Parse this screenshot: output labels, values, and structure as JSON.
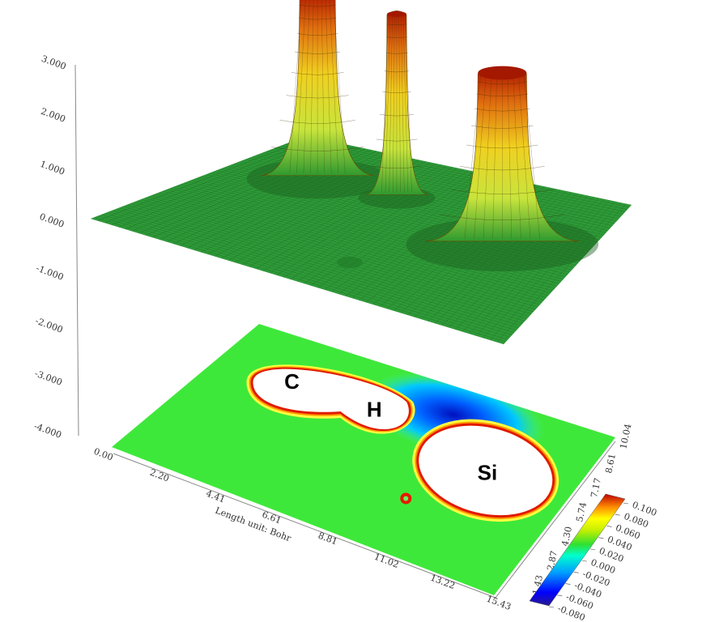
{
  "chart_data": {
    "type": "surface3d_with_contour",
    "z_axis": {
      "ticks": [
        "3.000",
        "2.000",
        "1.000",
        "0.000",
        "-1.000",
        "-2.000",
        "-3.000",
        "-4.000"
      ]
    },
    "x_axis": {
      "label": "Length unit: Bohr",
      "ticks": [
        "0.00",
        "2.20",
        "4.41",
        "6.61",
        "8.81",
        "11.02",
        "13.22",
        "15.43"
      ]
    },
    "y_axis": {
      "ticks": [
        "1.43",
        "2.87",
        "4.30",
        "5.74",
        "7.17",
        "8.61",
        "10.04"
      ]
    },
    "colorbar": {
      "ticks": [
        "0.100",
        "0.080",
        "0.060",
        "0.040",
        "0.020",
        "0.000",
        "-0.020",
        "-0.040",
        "-0.060",
        "-0.080"
      ],
      "range": [
        -0.08,
        0.1
      ],
      "colors": [
        "#2a1a8c",
        "#0000ff",
        "#00a0ff",
        "#00ffcc",
        "#30e030",
        "#c8f000",
        "#ffff00",
        "#ff9000",
        "#e00000",
        "#a00000"
      ]
    },
    "atoms": [
      {
        "label": "C",
        "x": 3.1,
        "y": 7.3
      },
      {
        "label": "H",
        "x": 6.6,
        "y": 7.3
      },
      {
        "label": "Si",
        "x": 12.1,
        "y": 6.0
      }
    ],
    "peaks": [
      {
        "x": 3.1,
        "y": 7.3,
        "height": 3.0
      },
      {
        "x": 6.6,
        "y": 7.3,
        "height": 3.0
      },
      {
        "x": 12.1,
        "y": 6.0,
        "height": 2.8
      }
    ]
  }
}
